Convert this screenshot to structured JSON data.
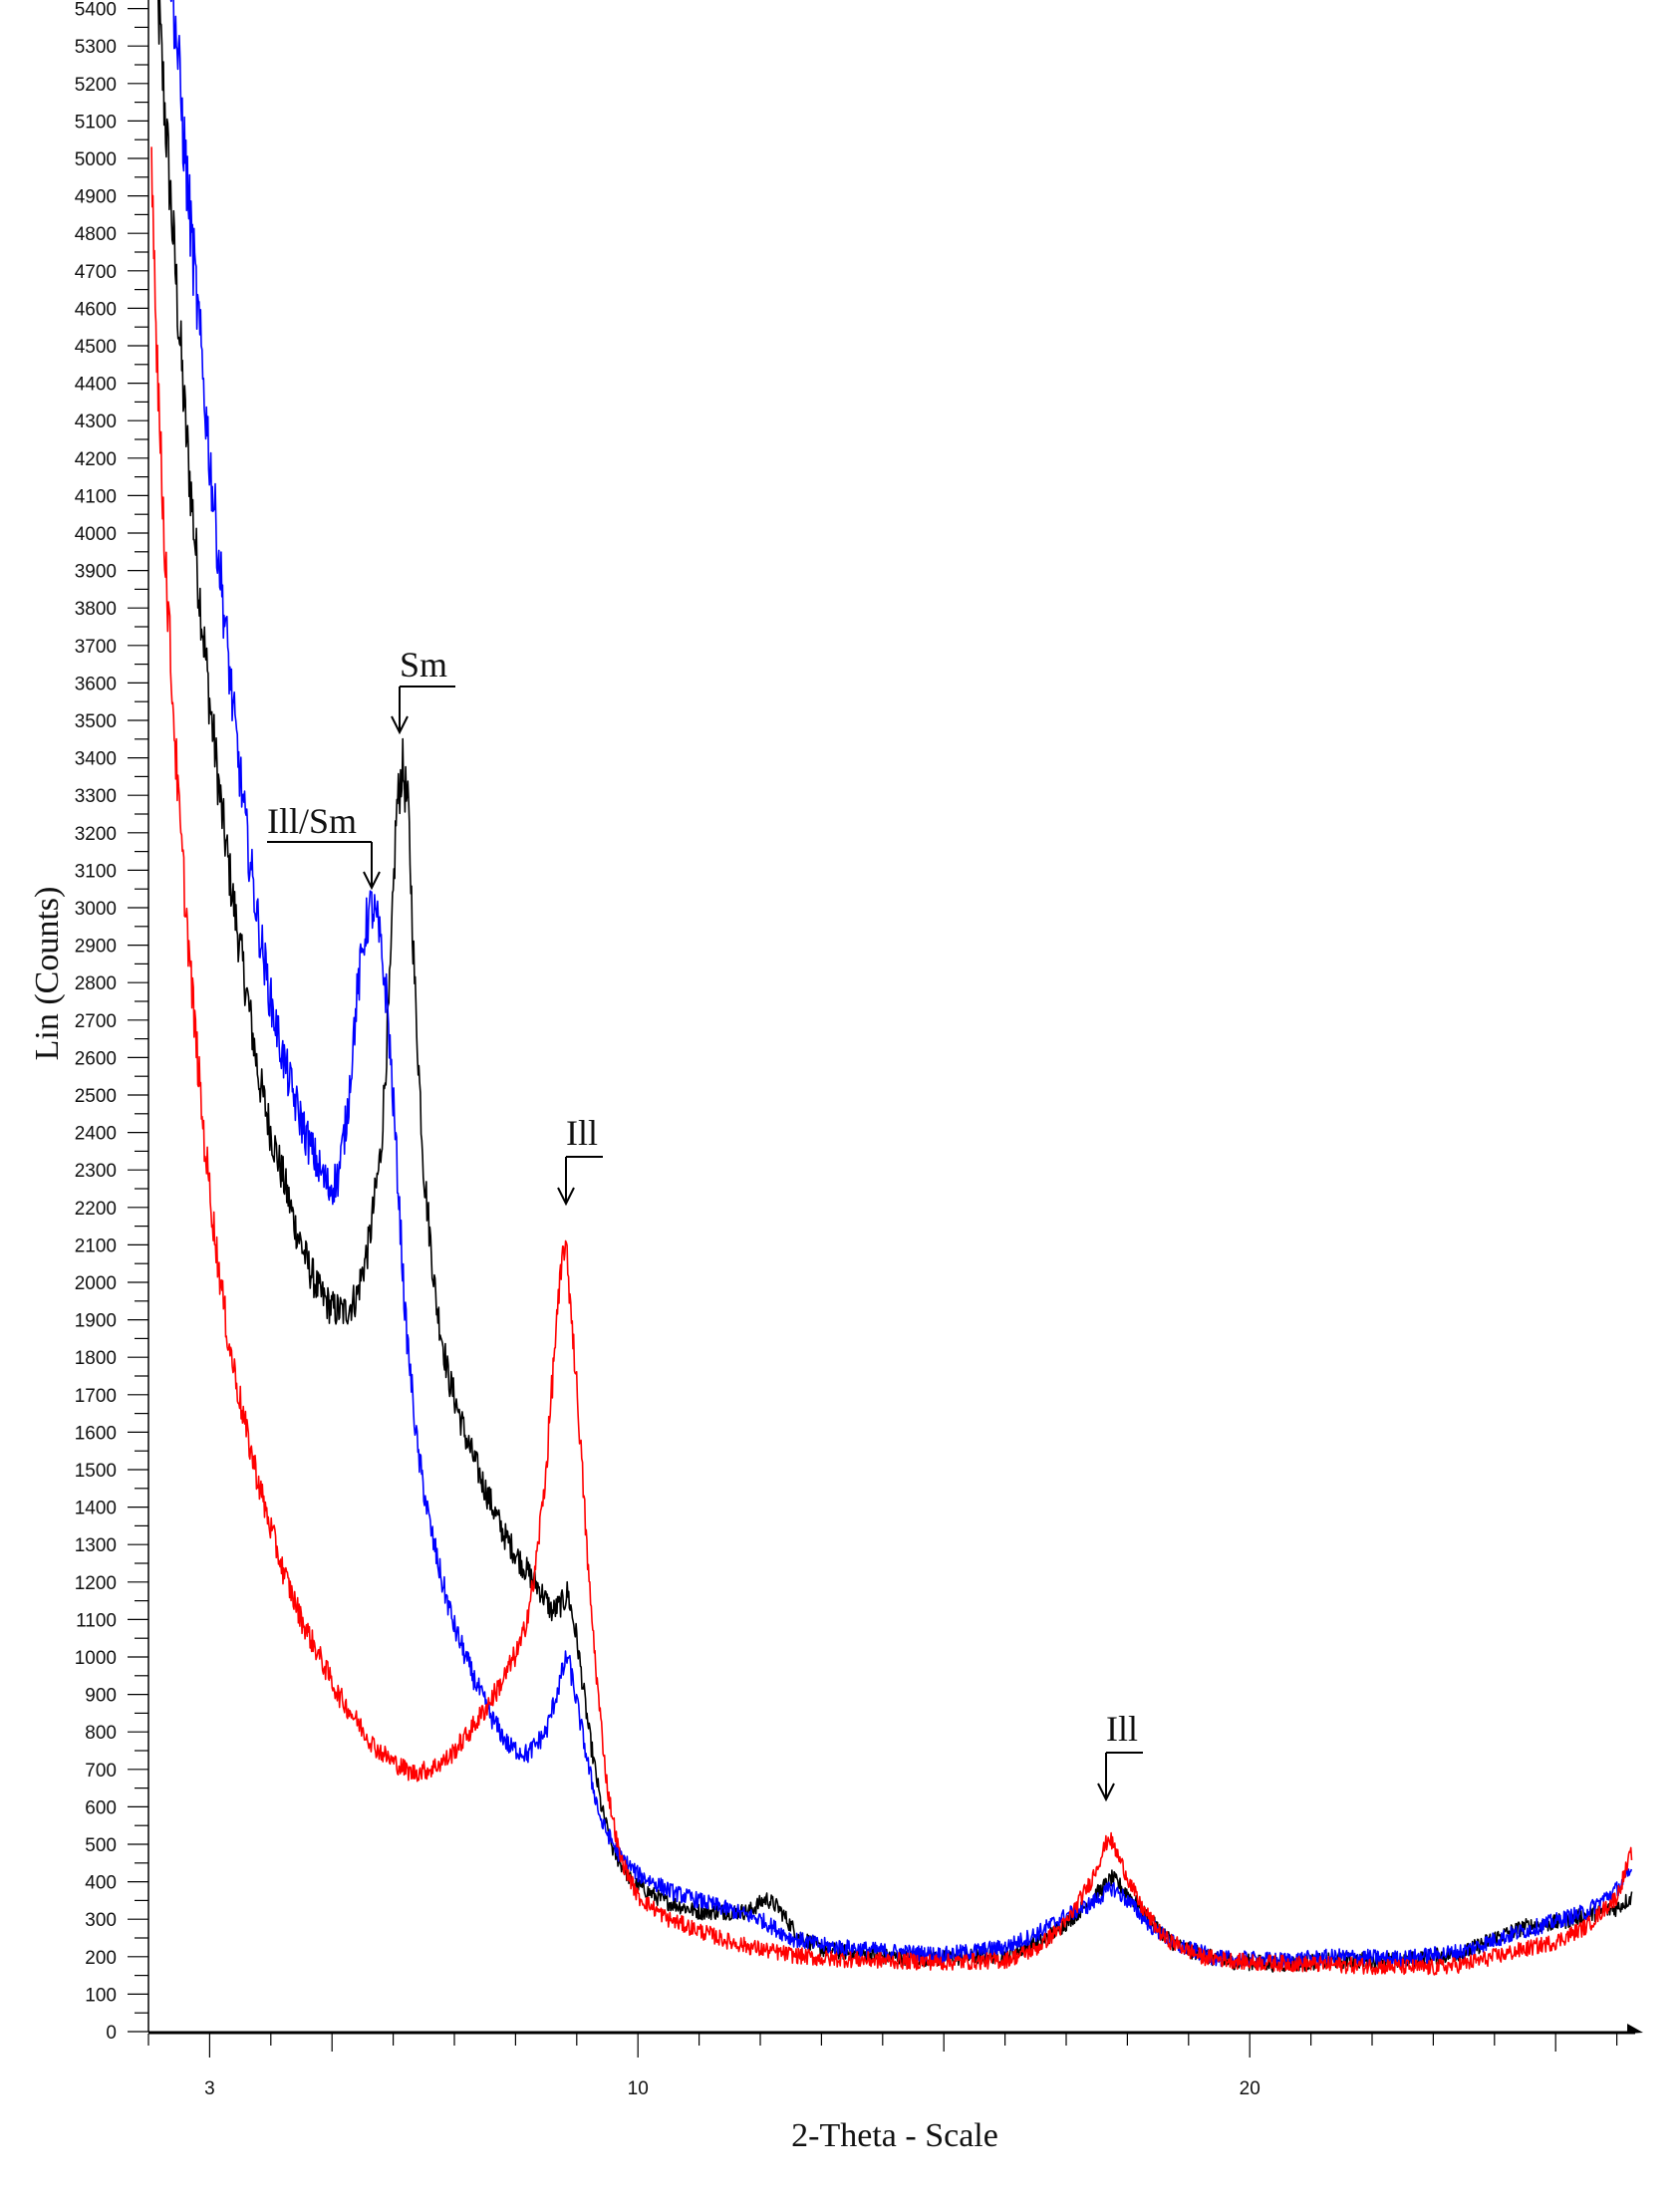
{
  "chart_data": {
    "type": "line",
    "title": "",
    "xlabel": "2-Theta - Scale",
    "ylabel": "Lin (Counts)",
    "xlim": [
      2.0,
      26.3
    ],
    "ylim": [
      0,
      5400
    ],
    "x_ticks_major": [
      3,
      10,
      20
    ],
    "x_tick_labels": [
      "3",
      "10",
      "20"
    ],
    "x_minor_step": 1,
    "y_tick_step": 100,
    "y_tick_labels": [
      "0",
      "100",
      "200",
      "300",
      "400",
      "500",
      "600",
      "700",
      "800",
      "900",
      "1000",
      "1100",
      "1200",
      "1300",
      "1400",
      "1500",
      "1600",
      "1700",
      "1800",
      "1900",
      "2000",
      "2100",
      "2200",
      "2300",
      "2400",
      "2500",
      "2600",
      "2700",
      "2800",
      "2900",
      "3000",
      "3100",
      "3200",
      "3300",
      "3400",
      "3500",
      "3600",
      "3700",
      "3800",
      "3900",
      "4000",
      "4100",
      "4200",
      "4300",
      "4400",
      "4500",
      "4600",
      "4700",
      "4800",
      "4900",
      "5000",
      "5100",
      "5200",
      "5300",
      "5400"
    ],
    "grid": false,
    "legend": null,
    "series": [
      {
        "name": "black",
        "color": "#000000",
        "points": [
          [
            2.1,
            5600
          ],
          [
            2.2,
            5300
          ],
          [
            2.4,
            4800
          ],
          [
            2.6,
            4300
          ],
          [
            2.8,
            3900
          ],
          [
            3.0,
            3550
          ],
          [
            3.2,
            3250
          ],
          [
            3.4,
            3000
          ],
          [
            3.6,
            2780
          ],
          [
            3.8,
            2550
          ],
          [
            4.0,
            2400
          ],
          [
            4.2,
            2280
          ],
          [
            4.4,
            2150
          ],
          [
            4.6,
            2050
          ],
          [
            4.8,
            1970
          ],
          [
            5.0,
            1930
          ],
          [
            5.2,
            1920
          ],
          [
            5.4,
            1960
          ],
          [
            5.6,
            2100
          ],
          [
            5.8,
            2350
          ],
          [
            5.95,
            2800
          ],
          [
            6.05,
            3250
          ],
          [
            6.15,
            3380
          ],
          [
            6.25,
            3250
          ],
          [
            6.35,
            2800
          ],
          [
            6.5,
            2300
          ],
          [
            6.7,
            1950
          ],
          [
            6.9,
            1750
          ],
          [
            7.2,
            1580
          ],
          [
            7.5,
            1450
          ],
          [
            7.8,
            1330
          ],
          [
            8.1,
            1250
          ],
          [
            8.4,
            1180
          ],
          [
            8.6,
            1120
          ],
          [
            8.8,
            1150
          ],
          [
            8.85,
            1175
          ],
          [
            9.0,
            1050
          ],
          [
            9.2,
            800
          ],
          [
            9.4,
            600
          ],
          [
            9.6,
            480
          ],
          [
            9.9,
            400
          ],
          [
            10.4,
            350
          ],
          [
            11.0,
            320
          ],
          [
            11.8,
            320
          ],
          [
            12.1,
            355
          ],
          [
            12.3,
            330
          ],
          [
            12.6,
            260
          ],
          [
            13.0,
            220
          ],
          [
            14.0,
            200
          ],
          [
            15.0,
            195
          ],
          [
            16.0,
            205
          ],
          [
            16.6,
            240
          ],
          [
            17.0,
            290
          ],
          [
            17.4,
            350
          ],
          [
            17.75,
            410
          ],
          [
            18.0,
            370
          ],
          [
            18.4,
            290
          ],
          [
            18.8,
            230
          ],
          [
            19.5,
            190
          ],
          [
            20.5,
            180
          ],
          [
            21.5,
            190
          ],
          [
            22.5,
            190
          ],
          [
            23.5,
            210
          ],
          [
            24.0,
            250
          ],
          [
            24.5,
            280
          ],
          [
            25.0,
            290
          ],
          [
            25.5,
            310
          ],
          [
            26.0,
            330
          ],
          [
            26.25,
            360
          ]
        ]
      },
      {
        "name": "blue",
        "color": "#0000ff",
        "points": [
          [
            2.3,
            5700
          ],
          [
            2.4,
            5450
          ],
          [
            2.6,
            5000
          ],
          [
            2.8,
            4600
          ],
          [
            3.0,
            4200
          ],
          [
            3.2,
            3850
          ],
          [
            3.4,
            3500
          ],
          [
            3.6,
            3200
          ],
          [
            3.8,
            2950
          ],
          [
            4.0,
            2750
          ],
          [
            4.2,
            2600
          ],
          [
            4.4,
            2480
          ],
          [
            4.6,
            2380
          ],
          [
            4.8,
            2300
          ],
          [
            4.95,
            2250
          ],
          [
            5.1,
            2280
          ],
          [
            5.25,
            2450
          ],
          [
            5.4,
            2750
          ],
          [
            5.55,
            2950
          ],
          [
            5.65,
            3005
          ],
          [
            5.75,
            2950
          ],
          [
            5.9,
            2750
          ],
          [
            6.05,
            2350
          ],
          [
            6.2,
            1900
          ],
          [
            6.4,
            1550
          ],
          [
            6.6,
            1350
          ],
          [
            6.8,
            1200
          ],
          [
            7.0,
            1080
          ],
          [
            7.3,
            950
          ],
          [
            7.6,
            840
          ],
          [
            7.9,
            760
          ],
          [
            8.2,
            740
          ],
          [
            8.5,
            800
          ],
          [
            8.75,
            950
          ],
          [
            8.85,
            1005
          ],
          [
            9.0,
            880
          ],
          [
            9.2,
            700
          ],
          [
            9.4,
            560
          ],
          [
            9.7,
            470
          ],
          [
            10.0,
            420
          ],
          [
            10.6,
            370
          ],
          [
            11.2,
            340
          ],
          [
            12.0,
            300
          ],
          [
            12.5,
            250
          ],
          [
            13.0,
            230
          ],
          [
            14.0,
            215
          ],
          [
            15.0,
            205
          ],
          [
            16.0,
            225
          ],
          [
            16.5,
            260
          ],
          [
            17.0,
            310
          ],
          [
            17.4,
            340
          ],
          [
            17.75,
            385
          ],
          [
            18.0,
            350
          ],
          [
            18.4,
            280
          ],
          [
            18.8,
            230
          ],
          [
            19.5,
            195
          ],
          [
            20.5,
            190
          ],
          [
            21.5,
            200
          ],
          [
            22.5,
            195
          ],
          [
            23.5,
            215
          ],
          [
            24.0,
            245
          ],
          [
            24.5,
            270
          ],
          [
            25.0,
            295
          ],
          [
            25.5,
            320
          ],
          [
            26.0,
            380
          ],
          [
            26.25,
            430
          ]
        ]
      },
      {
        "name": "red",
        "color": "#ff0000",
        "points": [
          [
            2.05,
            5070
          ],
          [
            2.1,
            4700
          ],
          [
            2.2,
            4200
          ],
          [
            2.35,
            3700
          ],
          [
            2.5,
            3250
          ],
          [
            2.7,
            2800
          ],
          [
            2.9,
            2400
          ],
          [
            3.1,
            2100
          ],
          [
            3.3,
            1850
          ],
          [
            3.6,
            1600
          ],
          [
            3.9,
            1400
          ],
          [
            4.2,
            1230
          ],
          [
            4.5,
            1100
          ],
          [
            4.8,
            1000
          ],
          [
            5.1,
            900
          ],
          [
            5.4,
            830
          ],
          [
            5.7,
            760
          ],
          [
            6.0,
            720
          ],
          [
            6.3,
            690
          ],
          [
            6.6,
            700
          ],
          [
            6.9,
            730
          ],
          [
            7.2,
            790
          ],
          [
            7.5,
            860
          ],
          [
            7.8,
            940
          ],
          [
            8.1,
            1040
          ],
          [
            8.3,
            1200
          ],
          [
            8.5,
            1500
          ],
          [
            8.65,
            1850
          ],
          [
            8.8,
            2117
          ],
          [
            8.9,
            1950
          ],
          [
            9.05,
            1600
          ],
          [
            9.2,
            1200
          ],
          [
            9.35,
            900
          ],
          [
            9.5,
            650
          ],
          [
            9.7,
            470
          ],
          [
            10.0,
            360
          ],
          [
            10.5,
            300
          ],
          [
            11.0,
            270
          ],
          [
            11.5,
            240
          ],
          [
            12.0,
            220
          ],
          [
            12.5,
            205
          ],
          [
            13.0,
            195
          ],
          [
            14.0,
            190
          ],
          [
            15.0,
            185
          ],
          [
            16.0,
            190
          ],
          [
            16.5,
            220
          ],
          [
            17.0,
            290
          ],
          [
            17.4,
            400
          ],
          [
            17.7,
            521
          ],
          [
            17.9,
            450
          ],
          [
            18.2,
            340
          ],
          [
            18.6,
            250
          ],
          [
            19.2,
            200
          ],
          [
            20.0,
            185
          ],
          [
            21.0,
            180
          ],
          [
            22.0,
            175
          ],
          [
            23.0,
            170
          ],
          [
            23.5,
            180
          ],
          [
            24.0,
            200
          ],
          [
            24.5,
            220
          ],
          [
            25.0,
            240
          ],
          [
            25.5,
            280
          ],
          [
            26.0,
            360
          ],
          [
            26.25,
            482
          ]
        ]
      }
    ],
    "annotations": [
      {
        "label": "Sm",
        "x": 6.15,
        "y": 3380,
        "target_series": "black"
      },
      {
        "label": "Ill/Sm",
        "x": 5.65,
        "y": 3005,
        "target_series": "blue"
      },
      {
        "label": "Ill",
        "x": 8.8,
        "y": 2117,
        "target_series": "red"
      },
      {
        "label": "Ill",
        "x": 17.7,
        "y": 521,
        "target_series": "red"
      }
    ]
  },
  "axes": {
    "x_title": "2-Theta - Scale",
    "y_title": "Lin (Counts)"
  }
}
